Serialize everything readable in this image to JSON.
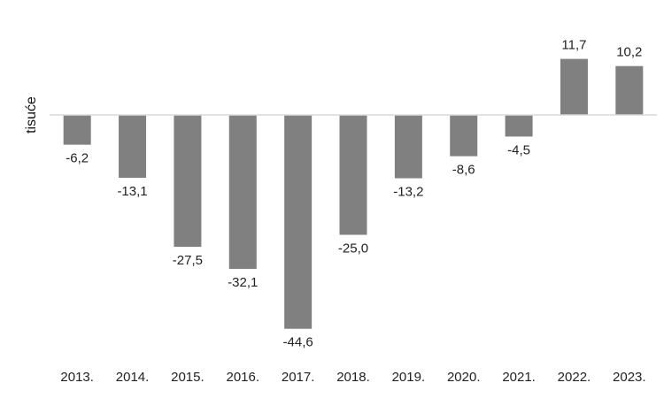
{
  "chart_data": {
    "type": "bar",
    "ylabel": "tisuće",
    "xlabel": "",
    "title": "",
    "categories": [
      "2013.",
      "2014.",
      "2015.",
      "2016.",
      "2017.",
      "2018.",
      "2019.",
      "2020.",
      "2021.",
      "2022.",
      "2023."
    ],
    "values": [
      -6.2,
      -13.1,
      -27.5,
      -32.1,
      -44.6,
      -25.0,
      -13.2,
      -8.6,
      -4.5,
      11.7,
      10.2
    ],
    "data_labels": [
      "-6,2",
      "-13,1",
      "-27,5",
      "-32,1",
      "-44,6",
      "-25,0",
      "-13,2",
      "-8,6",
      "-4,5",
      "11,7",
      "10,2"
    ],
    "bar_color": "#808080",
    "axis_color": "#d9d9d9",
    "grid": false,
    "legend": "none"
  }
}
